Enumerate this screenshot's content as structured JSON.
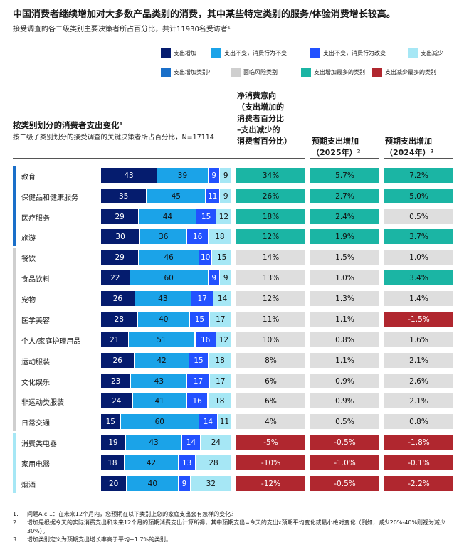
{
  "title": "中国消费者继续增加对大多数产品类别的消费，其中某些特定类别的服务/体验消费增长较高。",
  "subtitle": "接受调查的各二级类别主要决策者所占百分比，共计11930名受访者¹",
  "legend": [
    {
      "label": "支出增加",
      "color": "#051c6e"
    },
    {
      "label": "支出不变，消费行为不变",
      "color": "#1ba3e8"
    },
    {
      "label": "支出不变，消费行为改变",
      "color": "#2251ff"
    },
    {
      "label": "支出减少",
      "color": "#a6e7f5"
    },
    {
      "label": "支出增加类别³",
      "color": "#1a6fc9"
    },
    {
      "label": "面临风险类别",
      "color": "#cfcfcf"
    },
    {
      "label": "支出增加最多的类别",
      "color": "#1bb5a4"
    },
    {
      "label": "支出减少最多的类别",
      "color": "#b0272f"
    }
  ],
  "section": {
    "title": "按类别划分的消费者支出变化¹",
    "subtitle": "按二级子类别划分的接受调查的关键决策者所占百分比，N=17114"
  },
  "columns": {
    "net": [
      "净消费意向",
      "（支出增加的",
      "消费者百分比",
      "–支出减少的",
      "消费者百分比）"
    ],
    "exp2025": [
      "预期支出增加",
      "（2025年）²"
    ],
    "exp2024": [
      "预期支出增加",
      "（2024年）²"
    ]
  },
  "groups": [
    {
      "name": "increase",
      "color": "#1a6fc9",
      "rows": [
        0,
        3
      ]
    },
    {
      "name": "risk",
      "color": "#cfcfcf",
      "rows": [
        4,
        12
      ]
    },
    {
      "name": "decline",
      "color": "#a6e7f5",
      "rows": [
        13,
        15
      ]
    }
  ],
  "chart_data": {
    "type": "bar",
    "stacked": true,
    "series": [
      {
        "name": "支出增加",
        "color": "#051c6e"
      },
      {
        "name": "支出不变，消费行为不变",
        "color": "#1ba3e8"
      },
      {
        "name": "支出不变，消费行为改变",
        "color": "#2251ff"
      },
      {
        "name": "支出减少",
        "color": "#a6e7f5"
      }
    ],
    "rows": [
      {
        "label": "教育",
        "values": [
          43,
          39,
          9,
          9
        ],
        "net": "34%",
        "net_color": "teal",
        "exp2025": "5.7%",
        "exp2025_color": "teal",
        "exp2024": "7.2%",
        "exp2024_color": "teal"
      },
      {
        "label": "保健品和健康服务",
        "values": [
          35,
          45,
          11,
          9
        ],
        "net": "26%",
        "net_color": "teal",
        "exp2025": "2.7%",
        "exp2025_color": "teal",
        "exp2024": "5.0%",
        "exp2024_color": "teal"
      },
      {
        "label": "医疗服务",
        "values": [
          29,
          44,
          15,
          12
        ],
        "net": "18%",
        "net_color": "teal",
        "exp2025": "2.4%",
        "exp2025_color": "teal",
        "exp2024": "0.5%",
        "exp2024_color": "gray"
      },
      {
        "label": "旅游",
        "values": [
          30,
          36,
          16,
          18
        ],
        "net": "12%",
        "net_color": "teal",
        "exp2025": "1.9%",
        "exp2025_color": "teal",
        "exp2024": "3.7%",
        "exp2024_color": "teal"
      },
      {
        "label": "餐饮",
        "values": [
          29,
          46,
          10,
          15
        ],
        "net": "14%",
        "net_color": "gray",
        "exp2025": "1.5%",
        "exp2025_color": "gray",
        "exp2024": "1.0%",
        "exp2024_color": "gray"
      },
      {
        "label": "食品饮料",
        "values": [
          22,
          60,
          9,
          9
        ],
        "net": "13%",
        "net_color": "gray",
        "exp2025": "1.0%",
        "exp2025_color": "gray",
        "exp2024": "3.4%",
        "exp2024_color": "teal"
      },
      {
        "label": "宠物",
        "values": [
          26,
          43,
          17,
          14
        ],
        "net": "12%",
        "net_color": "gray",
        "exp2025": "1.3%",
        "exp2025_color": "gray",
        "exp2024": "1.4%",
        "exp2024_color": "gray"
      },
      {
        "label": "医学美容",
        "values": [
          28,
          40,
          15,
          17
        ],
        "net": "11%",
        "net_color": "gray",
        "exp2025": "1.1%",
        "exp2025_color": "gray",
        "exp2024": "-1.5%",
        "exp2024_color": "red"
      },
      {
        "label": "个人/家庭护理用品",
        "values": [
          21,
          51,
          16,
          12
        ],
        "net": "10%",
        "net_color": "gray",
        "exp2025": "0.8%",
        "exp2025_color": "gray",
        "exp2024": "1.6%",
        "exp2024_color": "gray"
      },
      {
        "label": "运动服装",
        "values": [
          26,
          42,
          15,
          18
        ],
        "net": "8%",
        "net_color": "gray",
        "exp2025": "1.1%",
        "exp2025_color": "gray",
        "exp2024": "2.1%",
        "exp2024_color": "gray"
      },
      {
        "label": "文化娱乐",
        "values": [
          23,
          43,
          17,
          17
        ],
        "net": "6%",
        "net_color": "gray",
        "exp2025": "0.9%",
        "exp2025_color": "gray",
        "exp2024": "2.6%",
        "exp2024_color": "gray"
      },
      {
        "label": "非运动类服装",
        "values": [
          24,
          41,
          16,
          18
        ],
        "net": "6%",
        "net_color": "gray",
        "exp2025": "0.9%",
        "exp2025_color": "gray",
        "exp2024": "2.1%",
        "exp2024_color": "gray"
      },
      {
        "label": "日常交通",
        "values": [
          15,
          60,
          14,
          11
        ],
        "net": "4%",
        "net_color": "gray",
        "exp2025": "0.5%",
        "exp2025_color": "gray",
        "exp2024": "0.8%",
        "exp2024_color": "gray"
      },
      {
        "label": "消费类电器",
        "values": [
          19,
          43,
          14,
          24
        ],
        "net": "-5%",
        "net_color": "red",
        "exp2025": "-0.5%",
        "exp2025_color": "red",
        "exp2024": "-1.8%",
        "exp2024_color": "red"
      },
      {
        "label": "家用电器",
        "values": [
          18,
          42,
          13,
          28
        ],
        "net": "-10%",
        "net_color": "red",
        "exp2025": "-1.0%",
        "exp2025_color": "red",
        "exp2024": "-0.1%",
        "exp2024_color": "red"
      },
      {
        "label": "烟酒",
        "values": [
          20,
          40,
          9,
          32
        ],
        "net": "-12%",
        "net_color": "red",
        "exp2025": "-0.5%",
        "exp2025_color": "red",
        "exp2024": "-2.2%",
        "exp2024_color": "red"
      }
    ]
  },
  "colors": {
    "teal": "#1bb5a4",
    "gray": "#dedede",
    "red": "#b0272f"
  },
  "notes": [
    {
      "num": "1.",
      "text": "问题A.c.1：在未来12个月内，您预期在以下类别上您的家庭支出会有怎样的变化？"
    },
    {
      "num": "2.",
      "text": "增加是根据今天的实际消费支出和未来12个月的预期消费支出计算所得，其中预期支出=今天的支出x预期平均变化或最小绝对变化（例如，减少20%-40%则视为减少30%）。"
    },
    {
      "num": "3.",
      "text": "增加类别定义为预期支出增长率高于平均+1.7%的类别。"
    }
  ]
}
